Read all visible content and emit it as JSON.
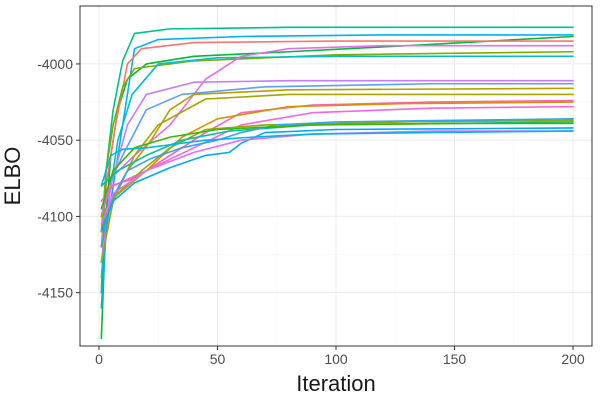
{
  "chart_data": {
    "type": "line",
    "xlabel": "Iteration",
    "ylabel": "ELBO",
    "xlim": [
      -8,
      208
    ],
    "ylim": [
      -4185,
      -3962
    ],
    "x_ticks": [
      0,
      50,
      100,
      150,
      200
    ],
    "x_tick_labels": [
      "0",
      "50",
      "100",
      "150",
      "200"
    ],
    "y_ticks": [
      -4150,
      -4100,
      -4050,
      -4000
    ],
    "y_tick_labels": [
      "-4150",
      "-4100",
      "-4050",
      "-4000"
    ],
    "grid": true,
    "legend": "none",
    "series": [
      {
        "color": "#00BA38",
        "points": [
          [
            1,
            -4180
          ],
          [
            3,
            -4100
          ],
          [
            5,
            -4060
          ],
          [
            8,
            -4030
          ],
          [
            12,
            -4010
          ],
          [
            20,
            -4000
          ],
          [
            40,
            -3995
          ],
          [
            80,
            -3992
          ],
          [
            130,
            -3988
          ],
          [
            200,
            -3982
          ]
        ]
      },
      {
        "color": "#00B0F6",
        "points": [
          [
            1,
            -4160
          ],
          [
            3,
            -4110
          ],
          [
            6,
            -4080
          ],
          [
            10,
            -4040
          ],
          [
            15,
            -3990
          ],
          [
            25,
            -3984
          ],
          [
            60,
            -3982
          ],
          [
            120,
            -3981
          ],
          [
            200,
            -3981
          ]
        ]
      },
      {
        "color": "#F8766D",
        "points": [
          [
            1,
            -4120
          ],
          [
            3,
            -4080
          ],
          [
            7,
            -4040
          ],
          [
            12,
            -4000
          ],
          [
            18,
            -3990
          ],
          [
            40,
            -3986
          ],
          [
            100,
            -3985
          ],
          [
            200,
            -3985
          ]
        ]
      },
      {
        "color": "#00C08B",
        "points": [
          [
            1,
            -4150
          ],
          [
            3,
            -4070
          ],
          [
            6,
            -4030
          ],
          [
            10,
            -3998
          ],
          [
            15,
            -3980
          ],
          [
            30,
            -3977
          ],
          [
            80,
            -3976
          ],
          [
            200,
            -3976
          ]
        ]
      },
      {
        "color": "#7CAE00",
        "points": [
          [
            1,
            -4110
          ],
          [
            3,
            -4070
          ],
          [
            6,
            -4040
          ],
          [
            10,
            -4015
          ],
          [
            15,
            -4003
          ],
          [
            40,
            -3998
          ],
          [
            100,
            -3994
          ],
          [
            200,
            -3992
          ]
        ]
      },
      {
        "color": "#00BFC4",
        "points": [
          [
            1,
            -4140
          ],
          [
            4,
            -4090
          ],
          [
            8,
            -4050
          ],
          [
            14,
            -4020
          ],
          [
            25,
            -4000
          ],
          [
            50,
            -3996
          ],
          [
            100,
            -3995
          ],
          [
            200,
            -3995
          ]
        ]
      },
      {
        "color": "#E76BF3",
        "points": [
          [
            1,
            -4100
          ],
          [
            5,
            -4075
          ],
          [
            15,
            -4060
          ],
          [
            30,
            -4040
          ],
          [
            45,
            -4010
          ],
          [
            60,
            -3995
          ],
          [
            80,
            -3990
          ],
          [
            120,
            -3988
          ],
          [
            200,
            -3988
          ]
        ]
      },
      {
        "color": "#C77CFF",
        "points": [
          [
            1,
            -4130
          ],
          [
            5,
            -4080
          ],
          [
            12,
            -4040
          ],
          [
            20,
            -4020
          ],
          [
            40,
            -4012
          ],
          [
            80,
            -4011
          ],
          [
            200,
            -4011
          ]
        ]
      },
      {
        "color": "#619CFF",
        "points": [
          [
            1,
            -4100
          ],
          [
            4,
            -4080
          ],
          [
            10,
            -4060
          ],
          [
            20,
            -4030
          ],
          [
            35,
            -4020
          ],
          [
            70,
            -4015
          ],
          [
            140,
            -4013
          ],
          [
            200,
            -4013
          ]
        ]
      },
      {
        "color": "#B79F00",
        "points": [
          [
            1,
            -4120
          ],
          [
            5,
            -4090
          ],
          [
            12,
            -4070
          ],
          [
            22,
            -4050
          ],
          [
            30,
            -4030
          ],
          [
            40,
            -4020
          ],
          [
            80,
            -4017
          ],
          [
            200,
            -4016
          ]
        ]
      },
      {
        "color": "#A3A500",
        "points": [
          [
            1,
            -4130
          ],
          [
            6,
            -4090
          ],
          [
            15,
            -4060
          ],
          [
            25,
            -4040
          ],
          [
            45,
            -4023
          ],
          [
            80,
            -4020
          ],
          [
            200,
            -4020
          ]
        ]
      },
      {
        "color": "#FF62BC",
        "points": [
          [
            1,
            -4100
          ],
          [
            5,
            -4080
          ],
          [
            15,
            -4075
          ],
          [
            30,
            -4060
          ],
          [
            45,
            -4045
          ],
          [
            60,
            -4032
          ],
          [
            90,
            -4027
          ],
          [
            140,
            -4025
          ],
          [
            200,
            -4024
          ]
        ]
      },
      {
        "color": "#F564E3",
        "points": [
          [
            1,
            -4090
          ],
          [
            6,
            -4080
          ],
          [
            20,
            -4070
          ],
          [
            40,
            -4055
          ],
          [
            60,
            -4040
          ],
          [
            90,
            -4032
          ],
          [
            140,
            -4029
          ],
          [
            200,
            -4028
          ]
        ]
      },
      {
        "color": "#D89000",
        "points": [
          [
            1,
            -4110
          ],
          [
            6,
            -4088
          ],
          [
            20,
            -4070
          ],
          [
            35,
            -4048
          ],
          [
            50,
            -4036
          ],
          [
            80,
            -4028
          ],
          [
            130,
            -4026
          ],
          [
            200,
            -4025
          ]
        ]
      },
      {
        "color": "#93AA00",
        "points": [
          [
            1,
            -4100
          ],
          [
            6,
            -4088
          ],
          [
            18,
            -4070
          ],
          [
            30,
            -4055
          ],
          [
            45,
            -4043
          ],
          [
            70,
            -4040
          ],
          [
            130,
            -4038
          ],
          [
            200,
            -4037
          ]
        ]
      },
      {
        "color": "#00C1A3",
        "points": [
          [
            1,
            -4080
          ],
          [
            8,
            -4070
          ],
          [
            20,
            -4060
          ],
          [
            35,
            -4050
          ],
          [
            55,
            -4044
          ],
          [
            90,
            -4040
          ],
          [
            150,
            -4039
          ],
          [
            200,
            -4038
          ]
        ]
      },
      {
        "color": "#35A2FF",
        "points": [
          [
            1,
            -4120
          ],
          [
            5,
            -4090
          ],
          [
            12,
            -4070
          ],
          [
            22,
            -4062
          ],
          [
            35,
            -4055
          ],
          [
            50,
            -4050
          ],
          [
            60,
            -4045
          ],
          [
            75,
            -4040
          ],
          [
            100,
            -4038
          ],
          [
            150,
            -4037
          ],
          [
            200,
            -4036
          ]
        ]
      },
      {
        "color": "#00A9FF",
        "points": [
          [
            1,
            -4110
          ],
          [
            6,
            -4090
          ],
          [
            15,
            -4078
          ],
          [
            30,
            -4068
          ],
          [
            45,
            -4060
          ],
          [
            55,
            -4058
          ],
          [
            60,
            -4052
          ],
          [
            70,
            -4045
          ],
          [
            100,
            -4043
          ],
          [
            200,
            -4042
          ]
        ]
      },
      {
        "color": "#DB72FB",
        "points": [
          [
            1,
            -4105
          ],
          [
            6,
            -4085
          ],
          [
            20,
            -4070
          ],
          [
            40,
            -4058
          ],
          [
            60,
            -4050
          ],
          [
            90,
            -4046
          ],
          [
            140,
            -4044
          ],
          [
            200,
            -4044
          ]
        ]
      },
      {
        "color": "#00B4F0",
        "points": [
          [
            1,
            -4080
          ],
          [
            5,
            -4060
          ],
          [
            10,
            -4056
          ],
          [
            20,
            -4055
          ],
          [
            30,
            -4053
          ],
          [
            45,
            -4050
          ],
          [
            65,
            -4048
          ],
          [
            90,
            -4046
          ],
          [
            140,
            -4045
          ],
          [
            200,
            -4044
          ]
        ]
      },
      {
        "color": "#39B600",
        "points": [
          [
            1,
            -4095
          ],
          [
            6,
            -4070
          ],
          [
            15,
            -4055
          ],
          [
            30,
            -4048
          ],
          [
            50,
            -4043
          ],
          [
            90,
            -4040
          ],
          [
            150,
            -4039
          ],
          [
            200,
            -4039
          ]
        ]
      }
    ]
  }
}
